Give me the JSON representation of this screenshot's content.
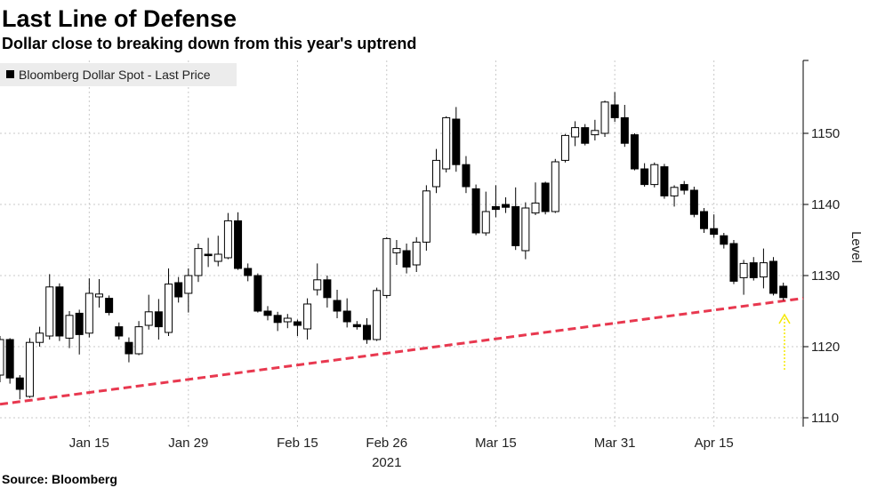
{
  "chart_data": {
    "type": "candlestick",
    "title": "Last Line of Defense",
    "subtitle": "Dollar close to breaking down from this year's uptrend",
    "ylabel": "Level",
    "source": "Source: Bloomberg",
    "year_label": "2021",
    "x": [
      "2021-01-04",
      "2021-01-05",
      "2021-01-06",
      "2021-01-07",
      "2021-01-08",
      "2021-01-11",
      "2021-01-12",
      "2021-01-13",
      "2021-01-14",
      "2021-01-15",
      "2021-01-18",
      "2021-01-19",
      "2021-01-20",
      "2021-01-21",
      "2021-01-22",
      "2021-01-25",
      "2021-01-26",
      "2021-01-27",
      "2021-01-28",
      "2021-01-29",
      "2021-02-01",
      "2021-02-02",
      "2021-02-03",
      "2021-02-04",
      "2021-02-05",
      "2021-02-08",
      "2021-02-09",
      "2021-02-10",
      "2021-02-11",
      "2021-02-12",
      "2021-02-15",
      "2021-02-16",
      "2021-02-17",
      "2021-02-18",
      "2021-02-19",
      "2021-02-22",
      "2021-02-23",
      "2021-02-24",
      "2021-02-25",
      "2021-02-26",
      "2021-03-01",
      "2021-03-02",
      "2021-03-03",
      "2021-03-04",
      "2021-03-05",
      "2021-03-08",
      "2021-03-09",
      "2021-03-10",
      "2021-03-11",
      "2021-03-12",
      "2021-03-15",
      "2021-03-16",
      "2021-03-17",
      "2021-03-18",
      "2021-03-19",
      "2021-03-22",
      "2021-03-23",
      "2021-03-24",
      "2021-03-25",
      "2021-03-26",
      "2021-03-29",
      "2021-03-30",
      "2021-03-31",
      "2021-04-01",
      "2021-04-05",
      "2021-04-06",
      "2021-04-07",
      "2021-04-08",
      "2021-04-09",
      "2021-04-12",
      "2021-04-13",
      "2021-04-14",
      "2021-04-15",
      "2021-04-16",
      "2021-04-19",
      "2021-04-20",
      "2021-04-21",
      "2021-04-22",
      "2021-04-23",
      "2021-04-26"
    ],
    "series": [
      {
        "name": "Bloomberg Dollar Spot - Last Price",
        "color": "#000000",
        "open": [
          1116,
          1121,
          1115.6,
          1113,
          1120.6,
          1121.5,
          1128.4,
          1121.2,
          1124.7,
          1121.9,
          1127,
          1126.8,
          1122.8,
          1120.6,
          1119,
          1123,
          1124.9,
          1122,
          1129,
          1127.5,
          1130,
          1133,
          1132,
          1132.5,
          1137.7,
          1131,
          1130,
          1125,
          1124.4,
          1123.5,
          1123.5,
          1122.5,
          1128,
          1129.4,
          1126.5,
          1125,
          1123.1,
          1123,
          1121,
          1127.2,
          1133.2,
          1133.5,
          1131.5,
          1134.7,
          1142.5,
          1145,
          1152,
          1145.6,
          1142.2,
          1136,
          1139.7,
          1140,
          1139.7,
          1133.5,
          1138.8,
          1143,
          1139,
          1146.2,
          1149.5,
          1150.8,
          1149.8,
          1150,
          1154,
          1152.2,
          1149.8,
          1145,
          1142.8,
          1145.3,
          1141.2,
          1142.8,
          1142,
          1139,
          1136.6,
          1135.6,
          1134.5,
          1129.7,
          1131.8,
          1129.8,
          1132,
          1128.5
        ],
        "high": [
          1121.5,
          1121.2,
          1116,
          1121.2,
          1122.8,
          1130.2,
          1128.9,
          1125,
          1125.2,
          1129.6,
          1129.5,
          1127.2,
          1123.4,
          1121.3,
          1123.6,
          1127.3,
          1126.7,
          1131,
          1129.8,
          1131,
          1134.5,
          1135.3,
          1135.6,
          1138.8,
          1138.9,
          1131.7,
          1130.3,
          1125.7,
          1124.9,
          1124.6,
          1123.8,
          1126.8,
          1131.7,
          1130,
          1128,
          1126.8,
          1123.6,
          1124,
          1128.3,
          1135.4,
          1135,
          1134.5,
          1135.4,
          1142.7,
          1147.8,
          1152.4,
          1153.7,
          1146.8,
          1142.8,
          1141.8,
          1142.7,
          1141,
          1142.4,
          1140.3,
          1143.1,
          1143.2,
          1146.4,
          1149.9,
          1151.7,
          1151.3,
          1151.9,
          1154.6,
          1155.8,
          1154,
          1150,
          1145.8,
          1145.9,
          1145.7,
          1142.7,
          1143.3,
          1142.5,
          1139.5,
          1138.6,
          1136,
          1135,
          1132.2,
          1132.6,
          1133.8,
          1132.6,
          1129
        ],
        "low": [
          1115,
          1114.8,
          1112.6,
          1112.8,
          1120,
          1121,
          1120.8,
          1119.8,
          1118.9,
          1121.3,
          1125.5,
          1124.4,
          1121,
          1117.8,
          1118.8,
          1122.4,
          1121,
          1121.5,
          1126.2,
          1124.8,
          1129.1,
          1131.2,
          1131.3,
          1132.3,
          1130.8,
          1129.2,
          1124.8,
          1123.7,
          1122.2,
          1122.6,
          1121.5,
          1121,
          1127.2,
          1125.5,
          1124,
          1122.7,
          1122.4,
          1120.4,
          1120.8,
          1126.8,
          1131.5,
          1130.3,
          1130.5,
          1133.5,
          1141.6,
          1144.5,
          1144.6,
          1141.6,
          1135.7,
          1135.6,
          1138.2,
          1138.8,
          1133.6,
          1132.3,
          1138.5,
          1138.6,
          1138.8,
          1145.9,
          1148.2,
          1148.3,
          1149,
          1149.5,
          1151.6,
          1148.1,
          1144.8,
          1142.5,
          1142.4,
          1140.8,
          1139.7,
          1141.4,
          1138.2,
          1136,
          1135.3,
          1133.8,
          1128.8,
          1127.3,
          1129.3,
          1128.2,
          1127.2,
          1126.5
        ],
        "close": [
          1121,
          1115.6,
          1114,
          1120.6,
          1121.9,
          1128.4,
          1121.5,
          1124.4,
          1121.7,
          1127.5,
          1127.4,
          1124.8,
          1121.5,
          1119,
          1122.8,
          1124.9,
          1122.8,
          1128.8,
          1127,
          1130,
          1133.8,
          1132.8,
          1133,
          1137.7,
          1131,
          1130,
          1125,
          1124.4,
          1123.4,
          1124,
          1123,
          1126,
          1129.4,
          1126.9,
          1125,
          1123.5,
          1122.8,
          1121,
          1127.9,
          1135.2,
          1133.8,
          1131.2,
          1134.7,
          1141.9,
          1146.2,
          1152.2,
          1145.6,
          1142.5,
          1136,
          1139,
          1139.3,
          1139.6,
          1134.2,
          1139.5,
          1140.2,
          1139,
          1146,
          1149.7,
          1150.8,
          1148.6,
          1150.4,
          1154.4,
          1152.2,
          1148.6,
          1145,
          1142.8,
          1145.6,
          1141.2,
          1142.4,
          1142,
          1138.6,
          1136.6,
          1135.8,
          1134.4,
          1129.2,
          1131.7,
          1129.7,
          1131.8,
          1127.5,
          1126.9
        ]
      }
    ],
    "trendline": {
      "color": "#e8384f",
      "values": [
        1111.9,
        1126.8
      ]
    },
    "ylim": [
      1108.75,
      1160.25
    ],
    "yticks": [
      1110,
      1120,
      1130,
      1140,
      1150
    ],
    "xticks": [
      {
        "value": "2021-01-15",
        "label": "Jan 15"
      },
      {
        "value": "2021-01-29",
        "label": "Jan 29"
      },
      {
        "value": "2021-02-15",
        "label": "Feb 15"
      },
      {
        "value": "2021-02-26",
        "label": "Feb 26"
      },
      {
        "value": "2021-03-15",
        "label": "Mar 15"
      },
      {
        "value": "2021-03-31",
        "label": "Mar 31"
      },
      {
        "value": "2021-04-15",
        "label": "Apr 15"
      }
    ],
    "grid": true,
    "legend": "top-left"
  }
}
